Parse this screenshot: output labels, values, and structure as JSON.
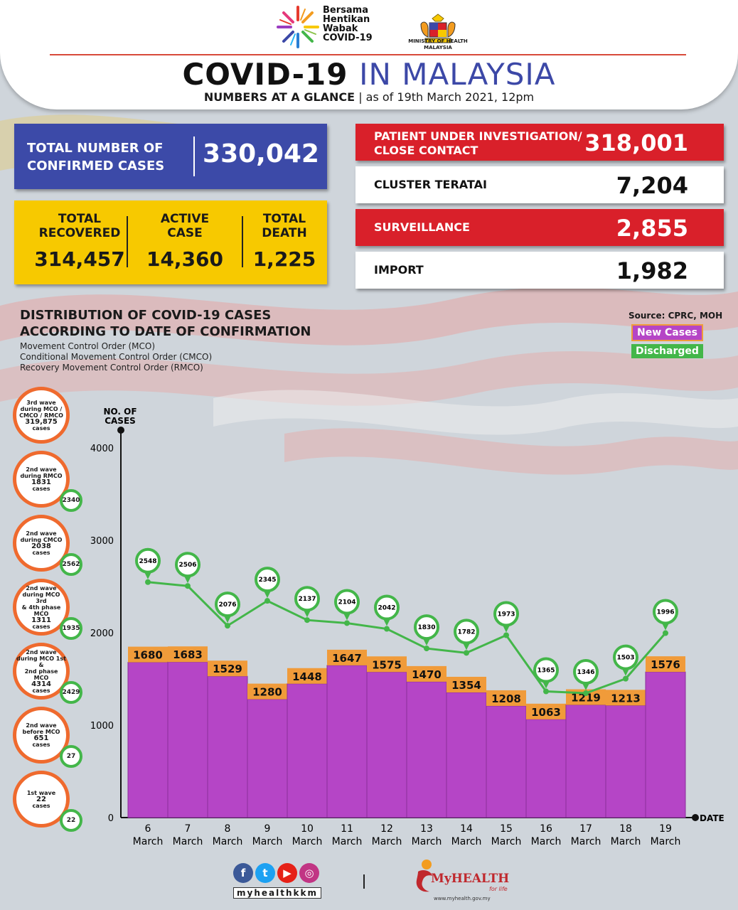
{
  "header": {
    "campaign_logo": [
      "Bersama",
      "Hentikan",
      "Wabak",
      "COVID-19"
    ],
    "ministry": [
      "MINISTRY OF HEALTH",
      "MALAYSIA"
    ],
    "title_part1": "COVID-19",
    "title_part2": "IN MALAYSIA",
    "subtitle_bold": "NUMBERS AT A GLANCE",
    "subtitle_rest": "| as of 19th March 2021, 12pm"
  },
  "summary": {
    "confirmed_label_1": "TOTAL NUMBER OF",
    "confirmed_label_2": "CONFIRMED CASES",
    "confirmed_value": "330,042",
    "recovered_label_1": "TOTAL",
    "recovered_label_2": "RECOVERED",
    "recovered_value": "314,457",
    "active_label_1": "ACTIVE",
    "active_label_2": "CASE",
    "active_value": "14,360",
    "death_label_1": "TOTAL",
    "death_label_2": "DEATH",
    "death_value": "1,225"
  },
  "categories": [
    {
      "label_1": "PATIENT UNDER INVESTIGATION/",
      "label_2": "CLOSE CONTACT",
      "value": "318,001",
      "style": "red"
    },
    {
      "label_1": "CLUSTER TERATAI",
      "label_2": "",
      "value": "7,204",
      "style": "white"
    },
    {
      "label_1": "SURVEILLANCE",
      "label_2": "",
      "value": "2,855",
      "style": "red"
    },
    {
      "label_1": "IMPORT",
      "label_2": "",
      "value": "1,982",
      "style": "white"
    }
  ],
  "section": {
    "title_1": "DISTRIBUTION OF COVID-19 CASES",
    "title_2": "ACCORDING TO DATE OF CONFIRMATION",
    "note_1": "Movement Control Order (MCO)",
    "note_2": "Conditional Movement Control Order (CMCO)",
    "note_3": "Recovery Movement Control Order (RMCO)",
    "source": "Source: CPRC, MOH"
  },
  "waves": [
    {
      "lines": [
        "3rd wave",
        "during MCO /",
        "CMCO / RMCO"
      ],
      "number": "319,875",
      "unit": "cases",
      "discharged": ""
    },
    {
      "lines": [
        "2nd wave",
        "during RMCO"
      ],
      "number": "1831",
      "unit": "cases",
      "discharged": "2340"
    },
    {
      "lines": [
        "2nd wave",
        "during CMCO"
      ],
      "number": "2038",
      "unit": "cases",
      "discharged": "2562"
    },
    {
      "lines": [
        "2nd wave",
        "during MCO 3rd",
        "& 4th phase MCO"
      ],
      "number": "1311",
      "unit": "cases",
      "discharged": "1935"
    },
    {
      "lines": [
        "2nd wave",
        "during MCO 1st &",
        "2nd phase MCO"
      ],
      "number": "4314",
      "unit": "cases",
      "discharged": "2429"
    },
    {
      "lines": [
        "2nd wave",
        "before MCO"
      ],
      "number": "651",
      "unit": "cases",
      "discharged": "27"
    },
    {
      "lines": [
        "1st wave"
      ],
      "number": "22",
      "unit": "cases",
      "discharged": "22"
    }
  ],
  "chart_data": {
    "type": "bar",
    "ylabel": "NO. OF CASES",
    "xlabel": "DATE",
    "ylim": [
      0,
      4000
    ],
    "yticks": [
      0,
      1000,
      2000,
      3000,
      4000
    ],
    "categories": [
      "6 March",
      "7 March",
      "8 March",
      "9 March",
      "10 March",
      "11 March",
      "12 March",
      "13 March",
      "14 March",
      "15 March",
      "16 March",
      "17 March",
      "18 March",
      "19 March"
    ],
    "category_day": [
      "6",
      "7",
      "8",
      "9",
      "10",
      "11",
      "12",
      "13",
      "14",
      "15",
      "16",
      "17",
      "18",
      "19"
    ],
    "category_month": "March",
    "series": [
      {
        "name": "New Cases",
        "type": "bar",
        "color": "#b545c6",
        "label_color": "#f09b3a",
        "values": [
          1680,
          1683,
          1529,
          1280,
          1448,
          1647,
          1575,
          1470,
          1354,
          1208,
          1063,
          1219,
          1213,
          1576
        ]
      },
      {
        "name": "Discharged",
        "type": "line",
        "color": "#43b649",
        "values": [
          2548,
          2506,
          2076,
          2345,
          2137,
          2104,
          2042,
          1830,
          1782,
          1973,
          1365,
          1346,
          1503,
          1996
        ]
      }
    ],
    "legend_position": "top-right",
    "grid": false
  },
  "footer": {
    "handle": "myhealthkkm",
    "social": [
      "f",
      "t",
      "▶",
      "◎"
    ],
    "brand": "MyHEALTH",
    "tagline": "for life",
    "url": "www.myhealth.gov.my",
    "separator": "|"
  },
  "colors": {
    "blue": "#3c4aa8",
    "yellow": "#f7c900",
    "red": "#d9202a",
    "purple": "#b545c6",
    "orange": "#f09b3a",
    "green": "#43b649"
  }
}
